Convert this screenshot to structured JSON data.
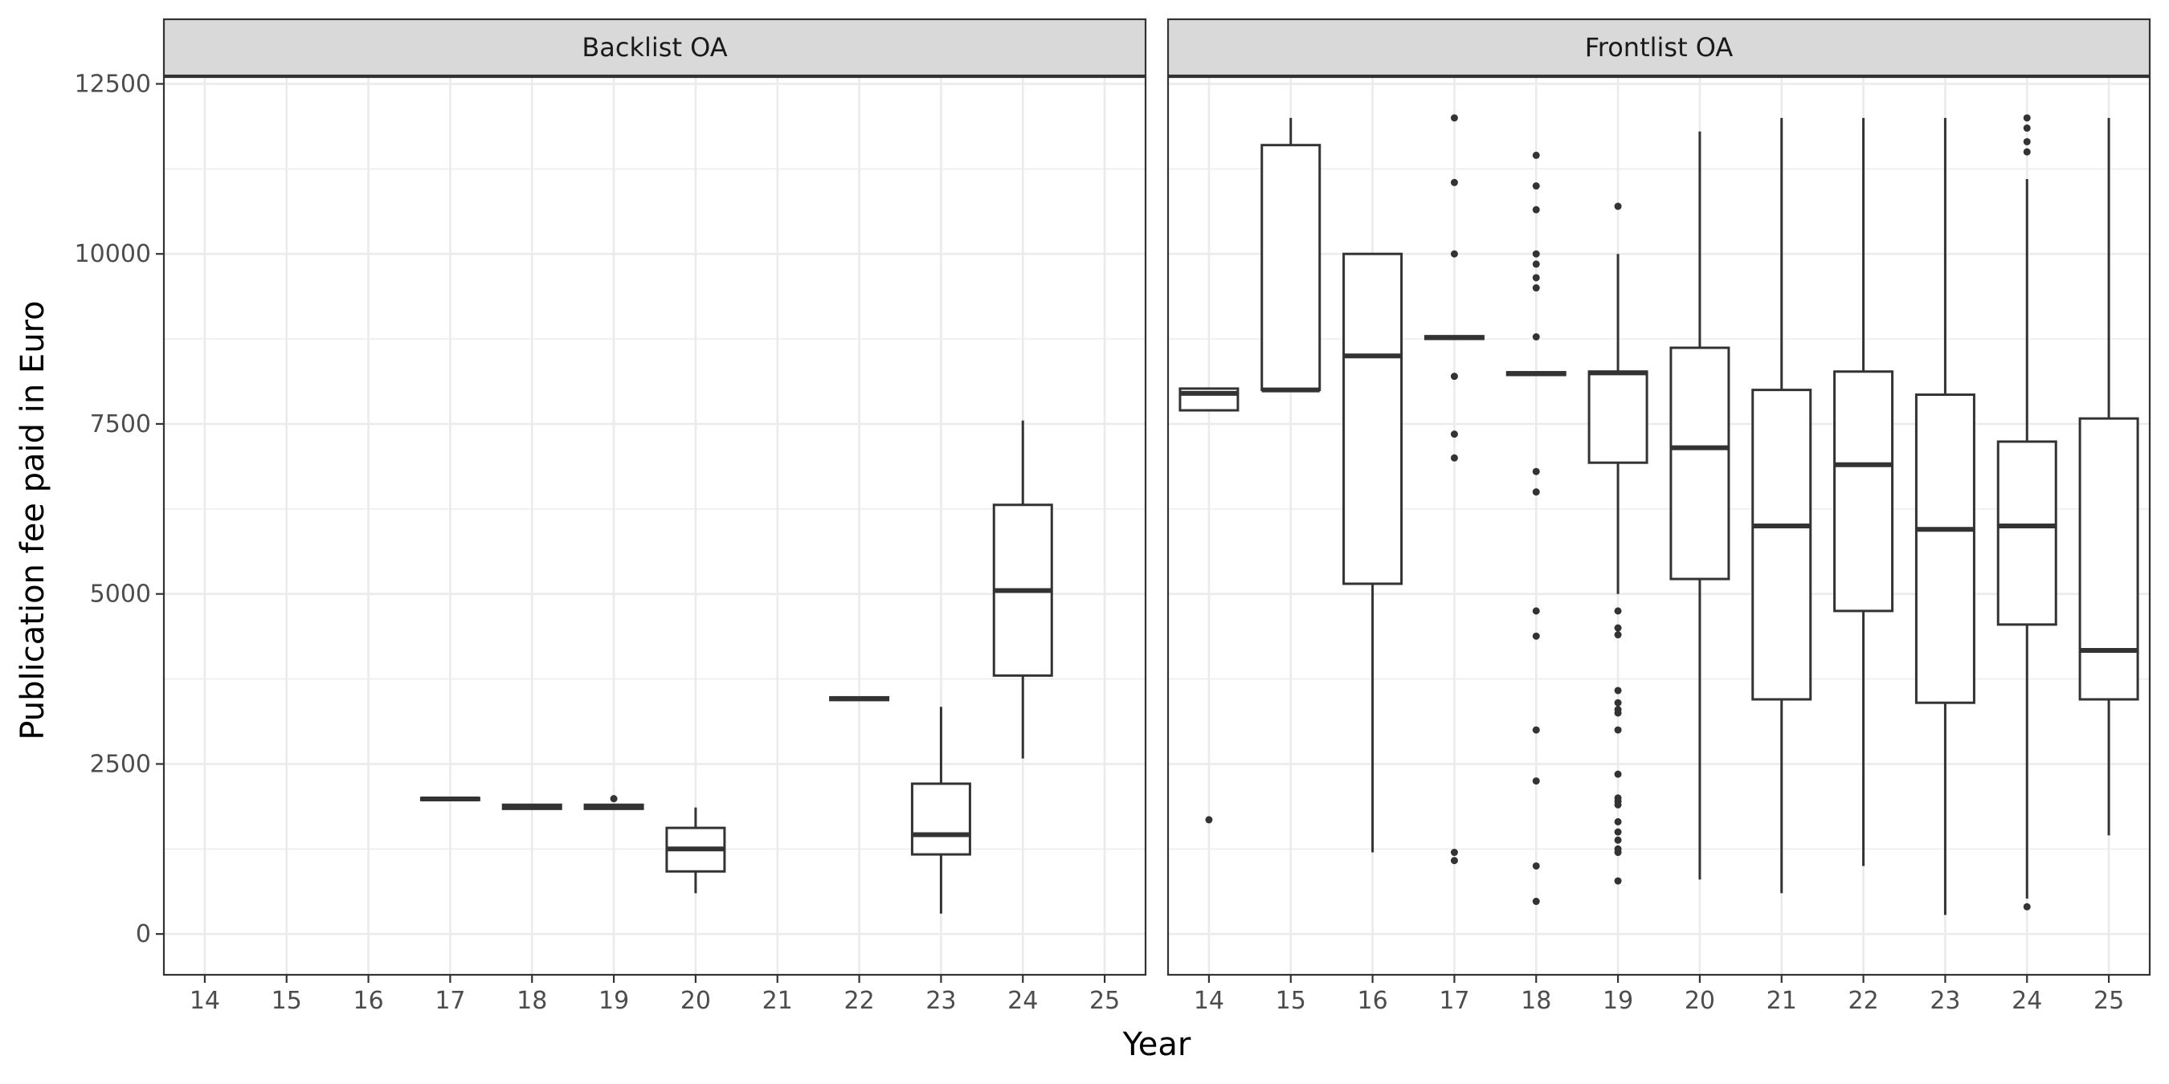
{
  "chart_data": {
    "type": "boxplot",
    "xlabel": "Year",
    "ylabel": "Publication fee paid in Euro",
    "ylim": [
      -600,
      12600
    ],
    "yticks": [
      0,
      2500,
      5000,
      7500,
      10000,
      12500
    ],
    "categories": [
      "14",
      "15",
      "16",
      "17",
      "18",
      "19",
      "20",
      "21",
      "22",
      "23",
      "24",
      "25"
    ],
    "grid": true,
    "colors": {
      "box_stroke": "#333333",
      "grid_major": "#ebebeb",
      "strip_fill": "#d9d9d9",
      "panel_border": "#333333"
    },
    "panels": [
      {
        "title": "Backlist OA",
        "boxes": [
          {
            "x": "17",
            "lower": 1970,
            "q1": 1970,
            "median": 1985,
            "q3": 2000,
            "upper": 2000,
            "outliers": []
          },
          {
            "x": "18",
            "lower": 1840,
            "q1": 1840,
            "median": 1870,
            "q3": 1900,
            "upper": 1900,
            "outliers": []
          },
          {
            "x": "19",
            "lower": 1840,
            "q1": 1840,
            "median": 1870,
            "q3": 1900,
            "upper": 1900,
            "outliers": [
              1990
            ]
          },
          {
            "x": "20",
            "lower": 600,
            "q1": 920,
            "median": 1250,
            "q3": 1560,
            "upper": 1860,
            "outliers": []
          },
          {
            "x": "22",
            "lower": 3440,
            "q1": 3440,
            "median": 3460,
            "q3": 3480,
            "upper": 3480,
            "outliers": []
          },
          {
            "x": "23",
            "lower": 300,
            "q1": 1170,
            "median": 1460,
            "q3": 2210,
            "upper": 3340,
            "outliers": []
          },
          {
            "x": "24",
            "lower": 2580,
            "q1": 3800,
            "median": 5050,
            "q3": 6310,
            "upper": 7550,
            "outliers": []
          }
        ]
      },
      {
        "title": "Frontlist OA",
        "boxes": [
          {
            "x": "14",
            "lower": 7700,
            "q1": 7700,
            "median": 7950,
            "q3": 8020,
            "upper": 8020,
            "outliers": [
              1680
            ]
          },
          {
            "x": "15",
            "lower": 8000,
            "q1": 8000,
            "median": 8000,
            "q3": 11600,
            "upper": 12000,
            "outliers": []
          },
          {
            "x": "16",
            "lower": 1200,
            "q1": 5150,
            "median": 8500,
            "q3": 10000,
            "upper": 10000,
            "outliers": []
          },
          {
            "x": "17",
            "lower": 8750,
            "q1": 8750,
            "median": 8770,
            "q3": 8790,
            "upper": 8790,
            "outliers": [
              12000,
              11050,
              10000,
              8200,
              7350,
              7000,
              1200,
              1080
            ]
          },
          {
            "x": "18",
            "lower": 8220,
            "q1": 8220,
            "median": 8240,
            "q3": 8260,
            "upper": 8260,
            "outliers": [
              11450,
              11000,
              10650,
              10000,
              9850,
              9650,
              9500,
              8780,
              6800,
              6500,
              4750,
              4380,
              3000,
              2250,
              1000,
              480
            ]
          },
          {
            "x": "19",
            "lower": 5000,
            "q1": 6930,
            "median": 8250,
            "q3": 8270,
            "upper": 10000,
            "outliers": [
              10700,
              4750,
              4500,
              4400,
              3580,
              3400,
              3300,
              3250,
              3000,
              2350,
              2000,
              1950,
              1900,
              1650,
              1500,
              1380,
              1250,
              1200,
              780
            ]
          },
          {
            "x": "20",
            "lower": 800,
            "q1": 5220,
            "median": 7150,
            "q3": 8620,
            "upper": 11800,
            "outliers": []
          },
          {
            "x": "21",
            "lower": 600,
            "q1": 3450,
            "median": 6000,
            "q3": 8000,
            "upper": 12000,
            "outliers": []
          },
          {
            "x": "22",
            "lower": 1000,
            "q1": 4750,
            "median": 6900,
            "q3": 8270,
            "upper": 12000,
            "outliers": []
          },
          {
            "x": "23",
            "lower": 280,
            "q1": 3400,
            "median": 5950,
            "q3": 7930,
            "upper": 12000,
            "outliers": []
          },
          {
            "x": "24",
            "lower": 520,
            "q1": 4550,
            "median": 6000,
            "q3": 7240,
            "upper": 11100,
            "outliers": [
              12000,
              11850,
              11650,
              11500,
              400
            ]
          },
          {
            "x": "25",
            "lower": 1450,
            "q1": 3450,
            "median": 4170,
            "q3": 7580,
            "upper": 12000,
            "outliers": []
          }
        ]
      }
    ]
  }
}
